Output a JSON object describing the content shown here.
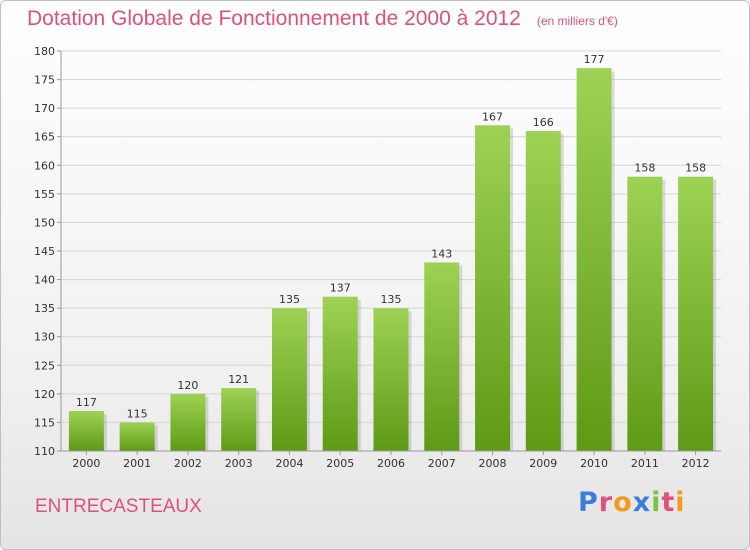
{
  "header": {
    "title": "Dotation Globale de Fonctionnement de 2000 à 2012",
    "subtitle": "(en milliers d'€)"
  },
  "footer": {
    "commune": "ENTRECASTEAUX",
    "brand": "Proxiti",
    "brand_colors": [
      "#3a7ed8",
      "#e0507a",
      "#f29a1c",
      "#3a7ed8",
      "#7cc242",
      "#e0507a",
      "#f29a1c"
    ]
  },
  "colors": {
    "bar_top": "#9ed254",
    "bar_bottom": "#5e9a16",
    "grid": "#d6d6d6",
    "axis": "#999999"
  },
  "chart_data": {
    "type": "bar",
    "title": "Dotation Globale de Fonctionnement de 2000 à 2012",
    "subtitle": "(en milliers d'€)",
    "categories": [
      "2000",
      "2001",
      "2002",
      "2003",
      "2004",
      "2005",
      "2006",
      "2007",
      "2008",
      "2009",
      "2010",
      "2011",
      "2012"
    ],
    "values": [
      117,
      115,
      120,
      121,
      135,
      137,
      135,
      143,
      167,
      166,
      177,
      158,
      158
    ],
    "ylim": [
      110,
      180
    ],
    "yticks": [
      110,
      115,
      120,
      125,
      130,
      135,
      140,
      145,
      150,
      155,
      160,
      165,
      170,
      175,
      180
    ],
    "grid": true,
    "legend": "none"
  }
}
